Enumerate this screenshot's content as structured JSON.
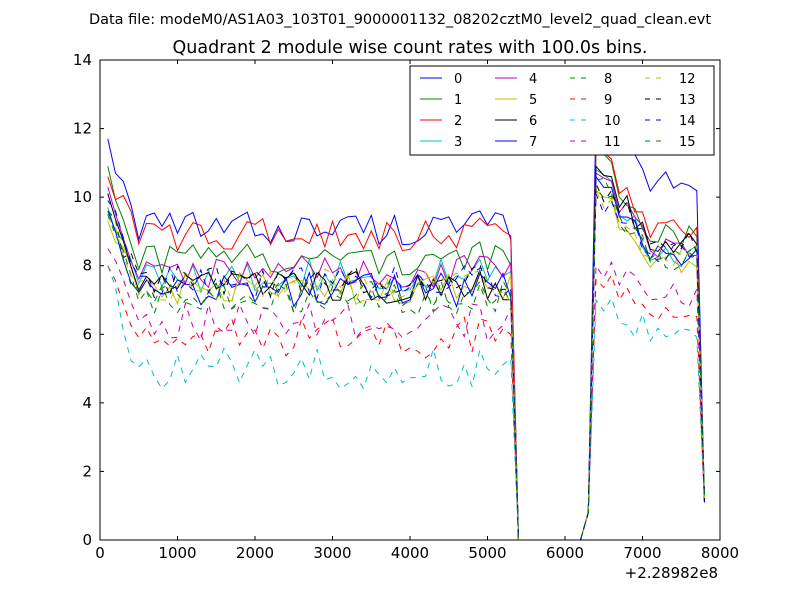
{
  "chart_data": {
    "type": "line",
    "suptitle": "Data file: modeM0/AS1A03_103T01_9000001132_08202cztM0_level2_quad_clean.evt",
    "title": "Quadrant 2 module wise count rates with 100.0s bins.",
    "xlabel": "",
    "ylabel": "",
    "x_offset_label": "+2.28982e8",
    "xlim": [
      0,
      8000
    ],
    "ylim": [
      0,
      14
    ],
    "x_ticks": [
      0,
      1000,
      2000,
      3000,
      4000,
      5000,
      6000,
      7000,
      8000
    ],
    "x_tick_labels": [
      "0",
      "1000",
      "2000",
      "3000",
      "4000",
      "5000",
      "6000",
      "7000",
      "8000"
    ],
    "y_ticks": [
      0,
      2,
      4,
      6,
      8,
      10,
      12,
      14
    ],
    "y_tick_labels": [
      "0",
      "2",
      "4",
      "6",
      "8",
      "10",
      "12",
      "14"
    ],
    "grid": false,
    "legend_position": "top-right",
    "legend_columns": 4,
    "time_axis": {
      "start": 100,
      "end": 7800,
      "step": 100
    },
    "gap": {
      "last_on": 5300,
      "first_zero": 5400,
      "last_zero": 6200,
      "first_on": 6300
    },
    "series": [
      {
        "name": "0",
        "color": "#0000ff",
        "dash": "solid",
        "level": 9.1,
        "spread": 0.25,
        "start": 11.7,
        "peak": 12.4,
        "level2": 10.4,
        "end": 1.1
      },
      {
        "name": "1",
        "color": "#008000",
        "dash": "solid",
        "level": 8.2,
        "spread": 0.25,
        "start": 10.9,
        "peak": 11.3,
        "level2": 8.9,
        "end": 1.2
      },
      {
        "name": "2",
        "color": "#ff0000",
        "dash": "solid",
        "level": 8.9,
        "spread": 0.25,
        "start": 10.6,
        "peak": 11.4,
        "level2": 9.0,
        "end": 1.1
      },
      {
        "name": "3",
        "color": "#00bfbf",
        "dash": "solid",
        "level": 7.7,
        "spread": 0.25,
        "start": 9.7,
        "peak": 10.8,
        "level2": 8.3,
        "end": 1.3
      },
      {
        "name": "4",
        "color": "#bf00bf",
        "dash": "solid",
        "level": 7.8,
        "spread": 0.25,
        "start": 10.3,
        "peak": 10.7,
        "level2": 8.6,
        "end": 1.2
      },
      {
        "name": "5",
        "color": "#bfbf00",
        "dash": "solid",
        "level": 7.3,
        "spread": 0.25,
        "start": 9.3,
        "peak": 10.2,
        "level2": 8.1,
        "end": 1.2
      },
      {
        "name": "6",
        "color": "#000000",
        "dash": "solid",
        "level": 7.4,
        "spread": 0.25,
        "start": 10.1,
        "peak": 10.9,
        "level2": 8.6,
        "end": 1.1
      },
      {
        "name": "7",
        "color": "#0000ff",
        "dash": "solid",
        "level": 7.3,
        "spread": 0.25,
        "start": 9.6,
        "peak": 10.6,
        "level2": 8.3,
        "end": 1.1
      },
      {
        "name": "8",
        "color": "#008000",
        "dash": "dashed",
        "level": 7.0,
        "spread": 0.25,
        "start": 9.5,
        "peak": 10.3,
        "level2": 8.2,
        "end": 1.2
      },
      {
        "name": "9",
        "color": "#ff0000",
        "dash": "dashed",
        "level": 5.9,
        "spread": 0.3,
        "start": 8.0,
        "peak": 7.6,
        "level2": 6.8,
        "end": 1.0
      },
      {
        "name": "10",
        "color": "#00bfbf",
        "dash": "dashed",
        "level": 5.0,
        "spread": 0.3,
        "start": 8.0,
        "peak": 7.0,
        "level2": 6.0,
        "end": 1.1
      },
      {
        "name": "11",
        "color": "#bf00bf",
        "dash": "dashed",
        "level": 6.3,
        "spread": 0.3,
        "start": 8.5,
        "peak": 8.0,
        "level2": 7.2,
        "end": 1.1
      },
      {
        "name": "12",
        "color": "#bfbf00",
        "dash": "dashed",
        "level": 7.4,
        "spread": 0.25,
        "start": 9.4,
        "peak": 10.2,
        "level2": 8.3,
        "end": 1.2
      },
      {
        "name": "13",
        "color": "#000000",
        "dash": "dashed",
        "level": 7.6,
        "spread": 0.25,
        "start": 9.6,
        "peak": 10.4,
        "level2": 8.7,
        "end": 1.1
      },
      {
        "name": "14",
        "color": "#0000ff",
        "dash": "dashed",
        "level": 7.5,
        "spread": 0.25,
        "start": 9.9,
        "peak": 10.1,
        "level2": 8.4,
        "end": 1.1
      },
      {
        "name": "15",
        "color": "#008000",
        "dash": "dashed",
        "level": 7.1,
        "spread": 0.25,
        "start": 9.6,
        "peak": 10.5,
        "level2": 8.2,
        "end": 1.2
      }
    ]
  }
}
